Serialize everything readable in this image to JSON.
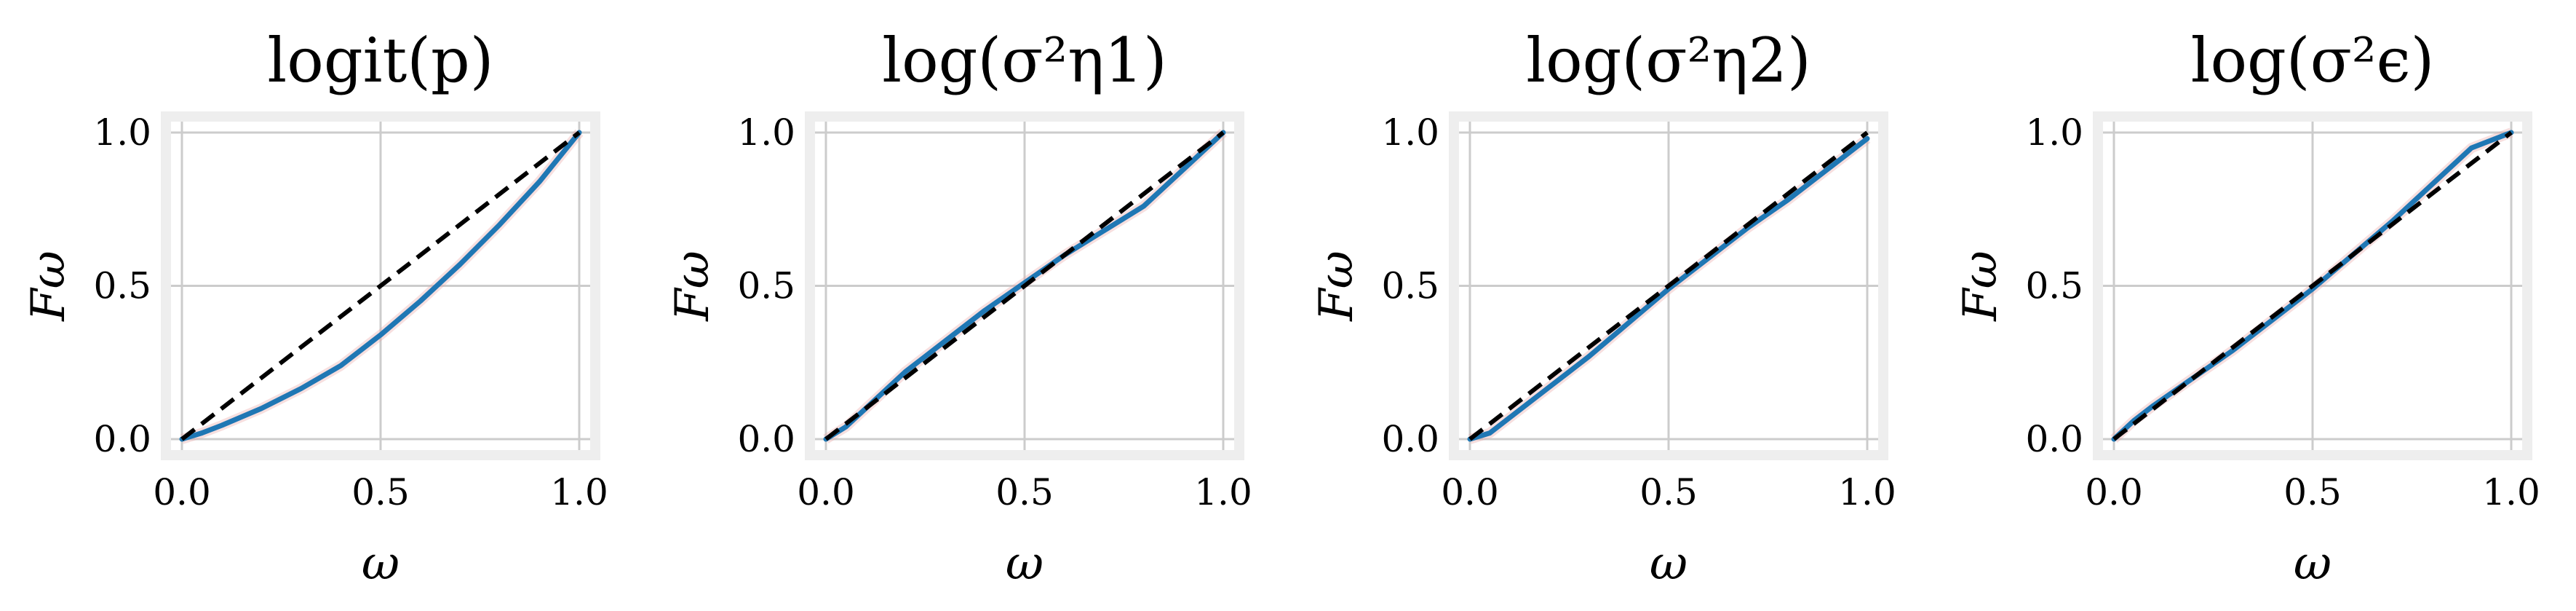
{
  "panels": [
    {
      "title": "logit(p)",
      "xlabel": "ω",
      "ylabel": "Fω",
      "chart_data": {
        "type": "line",
        "xlim": [
          0,
          1
        ],
        "ylim": [
          0,
          1
        ],
        "xticks": [
          "0.0",
          "0.5",
          "1.0"
        ],
        "yticks": [
          "0.0",
          "0.5",
          "1.0"
        ],
        "grid": true,
        "series": [
          {
            "role": "empirical",
            "color": "#1f77b4",
            "x": [
              0,
              0.05,
              0.1,
              0.2,
              0.3,
              0.4,
              0.5,
              0.6,
              0.7,
              0.8,
              0.9,
              1.0
            ],
            "y": [
              0,
              0.02,
              0.045,
              0.1,
              0.165,
              0.24,
              0.34,
              0.45,
              0.57,
              0.7,
              0.84,
              1.0
            ]
          },
          {
            "role": "reference",
            "color": "#000000",
            "dashed": true,
            "x": [
              0,
              1
            ],
            "y": [
              0,
              1
            ]
          }
        ]
      }
    },
    {
      "title": "log(σ²η1)",
      "xlabel": "ω",
      "ylabel": "Fω",
      "chart_data": {
        "type": "line",
        "xlim": [
          0,
          1
        ],
        "ylim": [
          0,
          1
        ],
        "xticks": [
          "0.0",
          "0.5",
          "1.0"
        ],
        "yticks": [
          "0.0",
          "0.5",
          "1.0"
        ],
        "grid": true,
        "series": [
          {
            "role": "empirical",
            "color": "#1f77b4",
            "x": [
              0,
              0.05,
              0.1,
              0.2,
              0.3,
              0.4,
              0.5,
              0.6,
              0.7,
              0.8,
              0.9,
              1.0
            ],
            "y": [
              0,
              0.04,
              0.1,
              0.22,
              0.32,
              0.42,
              0.51,
              0.6,
              0.68,
              0.76,
              0.88,
              1.0
            ]
          },
          {
            "role": "reference",
            "color": "#000000",
            "dashed": true,
            "x": [
              0,
              1
            ],
            "y": [
              0,
              1
            ]
          }
        ]
      }
    },
    {
      "title": "log(σ²η2)",
      "xlabel": "ω",
      "ylabel": "Fω",
      "chart_data": {
        "type": "line",
        "xlim": [
          0,
          1
        ],
        "ylim": [
          0,
          1
        ],
        "xticks": [
          "0.0",
          "0.5",
          "1.0"
        ],
        "yticks": [
          "0.0",
          "0.5",
          "1.0"
        ],
        "grid": true,
        "series": [
          {
            "role": "empirical",
            "color": "#1f77b4",
            "x": [
              0,
              0.05,
              0.1,
              0.2,
              0.3,
              0.4,
              0.5,
              0.6,
              0.7,
              0.8,
              0.9,
              1.0
            ],
            "y": [
              0,
              0.02,
              0.07,
              0.17,
              0.27,
              0.38,
              0.49,
              0.59,
              0.69,
              0.78,
              0.88,
              0.98
            ]
          },
          {
            "role": "reference",
            "color": "#000000",
            "dashed": true,
            "x": [
              0,
              1
            ],
            "y": [
              0,
              1
            ]
          }
        ]
      }
    },
    {
      "title": "log(σ²ϵ)",
      "xlabel": "ω",
      "ylabel": "Fω",
      "chart_data": {
        "type": "line",
        "xlim": [
          0,
          1
        ],
        "ylim": [
          0,
          1
        ],
        "xticks": [
          "0.0",
          "0.5",
          "1.0"
        ],
        "yticks": [
          "0.0",
          "0.5",
          "1.0"
        ],
        "grid": true,
        "series": [
          {
            "role": "empirical",
            "color": "#1f77b4",
            "x": [
              0,
              0.05,
              0.1,
              0.2,
              0.3,
              0.4,
              0.5,
              0.6,
              0.7,
              0.8,
              0.9,
              1.0
            ],
            "y": [
              0,
              0.06,
              0.11,
              0.2,
              0.29,
              0.39,
              0.49,
              0.6,
              0.71,
              0.83,
              0.95,
              1.0
            ]
          },
          {
            "role": "reference",
            "color": "#000000",
            "dashed": true,
            "x": [
              0,
              1
            ],
            "y": [
              0,
              1
            ]
          }
        ]
      }
    }
  ]
}
